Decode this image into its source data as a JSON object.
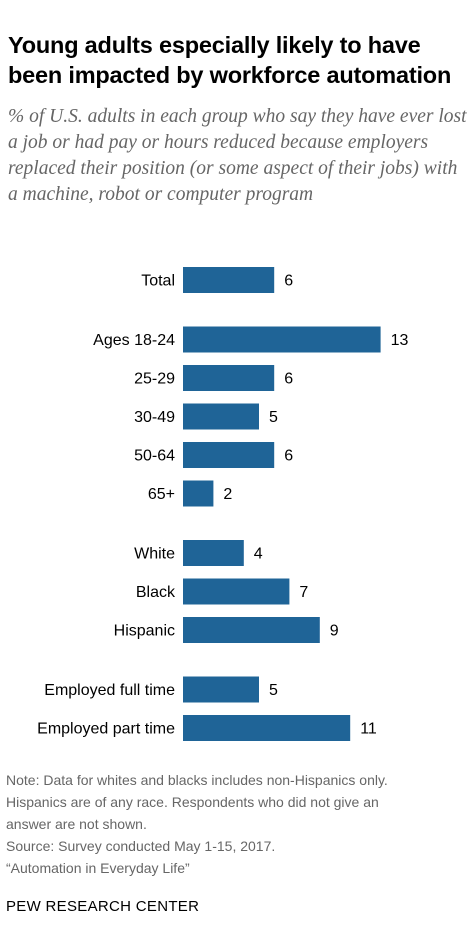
{
  "title": "Young adults especially likely to have been impacted by workforce automation",
  "subtitle": "% of U.S. adults in each group who say they have ever lost a job or had pay or hours reduced because employers replaced their position (or some aspect of their jobs) with a machine, robot or computer program",
  "chart_data": {
    "type": "bar",
    "orientation": "horizontal",
    "categories": [
      "Total",
      "Ages 18-24",
      "25-29",
      "30-49",
      "50-64",
      "65+",
      "White",
      "Black",
      "Hispanic",
      "Employed full time",
      "Employed part time"
    ],
    "values": [
      6,
      13,
      6,
      5,
      6,
      2,
      4,
      7,
      9,
      5,
      11
    ],
    "groups": [
      [
        "Total"
      ],
      [
        "Ages 18-24",
        "25-29",
        "30-49",
        "50-64",
        "65+"
      ],
      [
        "White",
        "Black",
        "Hispanic"
      ],
      [
        "Employed full time",
        "Employed part time"
      ]
    ],
    "bar_color": "#1f6497",
    "data_labels": true
  },
  "notes": [
    "Note: Data for whites and blacks includes non-Hispanics only.",
    "Hispanics are of any race. Respondents who did not give an",
    "answer are not shown.",
    "Source: Survey conducted May 1-15, 2017.",
    "“Automation in Everyday Life”"
  ],
  "source_org": "PEW RESEARCH CENTER"
}
